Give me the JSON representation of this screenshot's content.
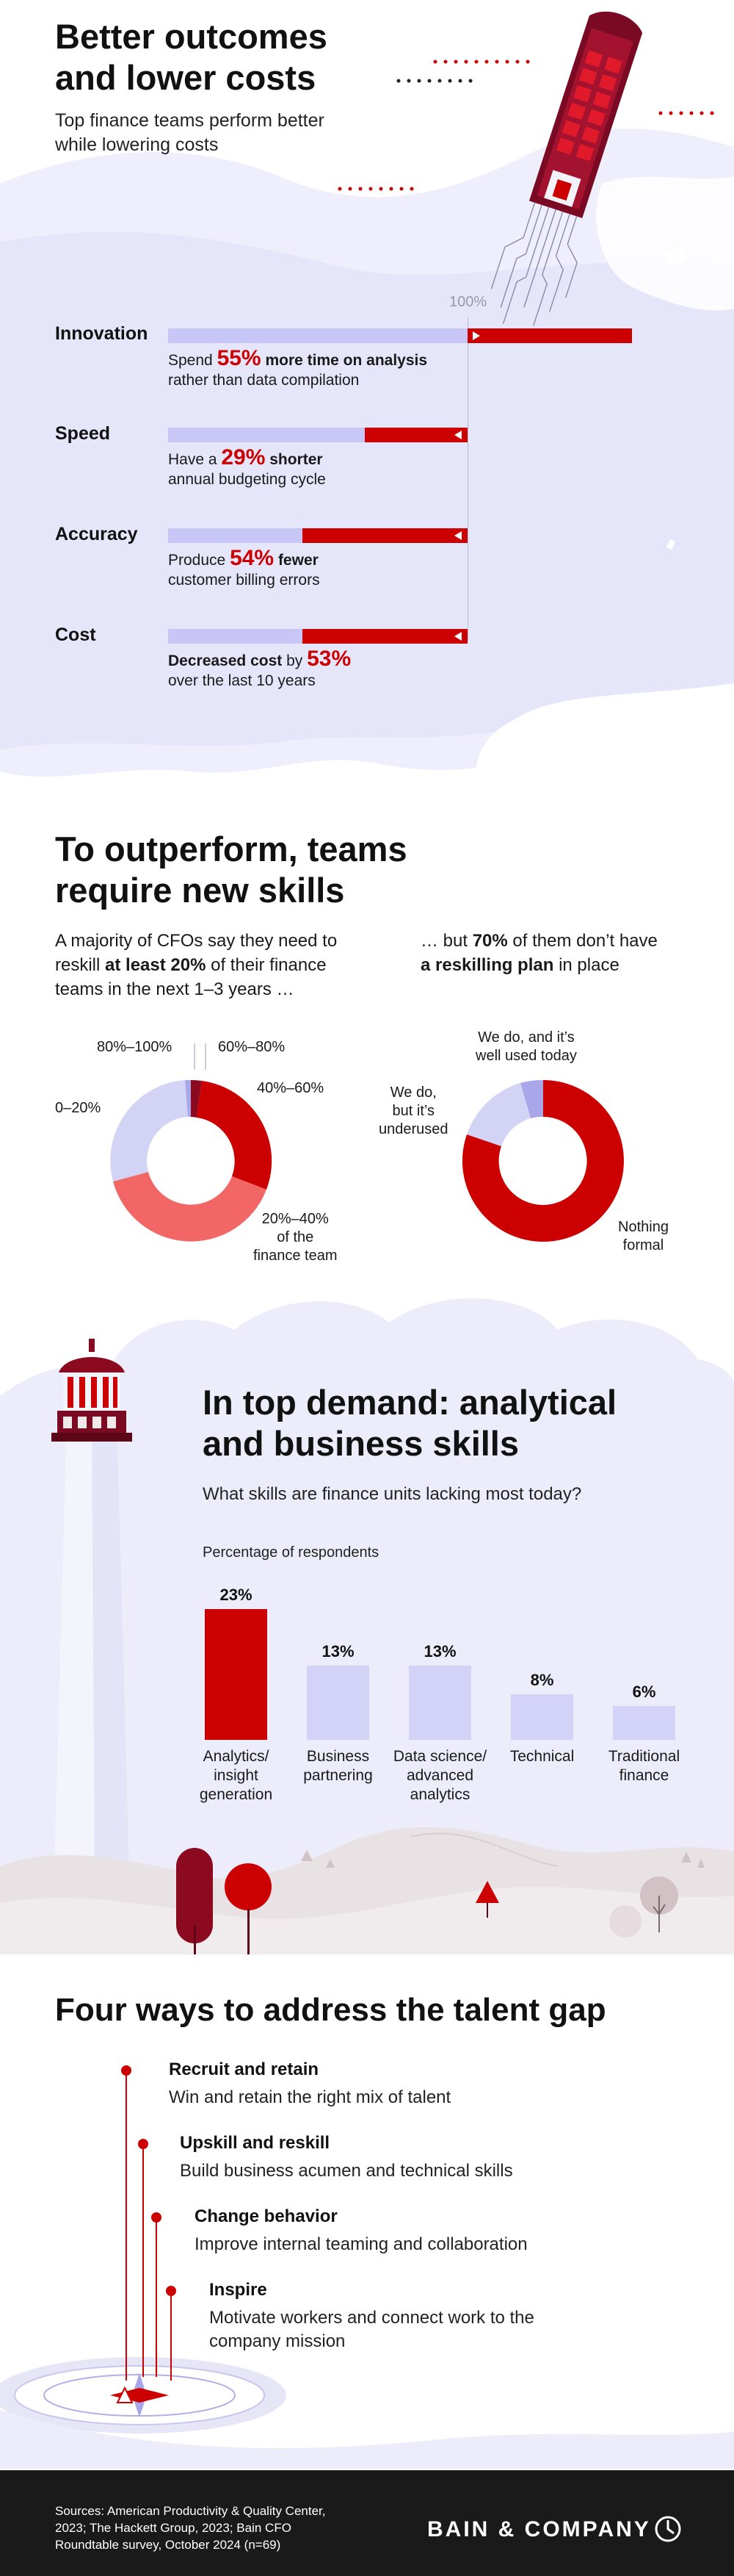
{
  "section1": {
    "title_line1": "Better outcomes",
    "title_line2": "and lower costs",
    "subtitle_line1": "Top finance teams perform better",
    "subtitle_line2": "while lowering costs",
    "hundred_label": "100%",
    "metrics": [
      {
        "name": "Innovation",
        "pre": "Spend ",
        "value_text": "55%",
        "bold_after": " more time on analysis",
        "line2": "rather than data compilation",
        "value": 55,
        "direction": "more"
      },
      {
        "name": "Speed",
        "pre": "Have a ",
        "value_text": "29%",
        "bold_after": " shorter",
        "line2": "annual budgeting cycle",
        "value": 29,
        "direction": "less"
      },
      {
        "name": "Accuracy",
        "pre": "Produce ",
        "value_text": "54%",
        "bold_after": " fewer",
        "line2": "customer billing errors",
        "value": 54,
        "direction": "less"
      },
      {
        "name": "Cost",
        "pre": "",
        "bold_before": "Decreased cost",
        "mid": " by ",
        "value_text": "53%",
        "line2": "over the last 10 years",
        "value": 53,
        "direction": "less"
      }
    ]
  },
  "section2": {
    "title_line1": "To outperform, teams",
    "title_line2": "require new skills",
    "left_text": {
      "line1": "A majority of CFOs say they need to",
      "line2_pre": "reskill ",
      "line2_bold": "at least 20%",
      "line2_post": " of their finance",
      "line3": "teams in the next 1–3 years …"
    },
    "right_text": {
      "line1_pre": "… but ",
      "line1_bold": "70%",
      "line1_post": " of them don’t have",
      "line2_bold": "a reskilling plan",
      "line2_post": " in place"
    },
    "donut1_labels": {
      "l80": "80%–100%",
      "l60": "60%–80%",
      "l40": "40%–60%",
      "l0": "0–20%",
      "l20_1": "20%–40%",
      "l20_2": "of the",
      "l20_3": "finance team"
    },
    "donut2_labels": {
      "well_1": "We do, and it’s",
      "well_2": "well used today",
      "under_1": "We do,",
      "under_2": "but it’s",
      "under_3": "underused",
      "nothing_1": "Nothing",
      "nothing_2": "formal"
    },
    "colors": {
      "dark_red": "#8c0a1f",
      "red": "#cc0000",
      "salmon": "#f26666",
      "lavender": "#d3d3f5",
      "purple": "#a9a6ea"
    }
  },
  "section3": {
    "title_line1": "In top demand: analytical",
    "title_line2": "and business skills",
    "subtitle": "What skills are finance units lacking most today?",
    "axis_note": "Percentage of respondents"
  },
  "chart_data": {
    "type": "bar",
    "categories": [
      "Analytics/ insight generation",
      "Business partnering",
      "Data science/ advanced analytics",
      "Technical",
      "Traditional finance"
    ],
    "category_lines": [
      [
        "Analytics/",
        "insight",
        "generation"
      ],
      [
        "Business",
        "partnering"
      ],
      [
        "Data science/",
        "advanced",
        "analytics"
      ],
      [
        "Technical"
      ],
      [
        "Traditional",
        "finance"
      ]
    ],
    "values": [
      23,
      13,
      13,
      8,
      6
    ],
    "value_labels": [
      "23%",
      "13%",
      "13%",
      "8%",
      "6%"
    ],
    "ylabel": "Percentage of respondents",
    "ylim": [
      0,
      23
    ],
    "highlight_color": "#cc0000",
    "bar_color": "#d3d3f7"
  },
  "section4": {
    "title": "Four ways to address the talent gap",
    "ways": [
      {
        "title": "Recruit and retain",
        "desc_line1": "Win and retain the right mix of talent",
        "desc_line2": ""
      },
      {
        "title": "Upskill and reskill",
        "desc_line1": "Build business acumen and technical skills",
        "desc_line2": ""
      },
      {
        "title": "Change behavior",
        "desc_line1": "Improve internal teaming and collaboration",
        "desc_line2": ""
      },
      {
        "title": "Inspire",
        "desc_line1": "Motivate workers and connect work to the",
        "desc_line2": "company mission"
      }
    ]
  },
  "footer": {
    "sources_line1": "Sources: American Productivity & Quality Center,",
    "sources_line2": "2023; The Hackett Group, 2023; Bain CFO",
    "sources_line3": "Roundtable survey, October 2024 (n=69)",
    "brand": "BAIN & COMPANY"
  }
}
